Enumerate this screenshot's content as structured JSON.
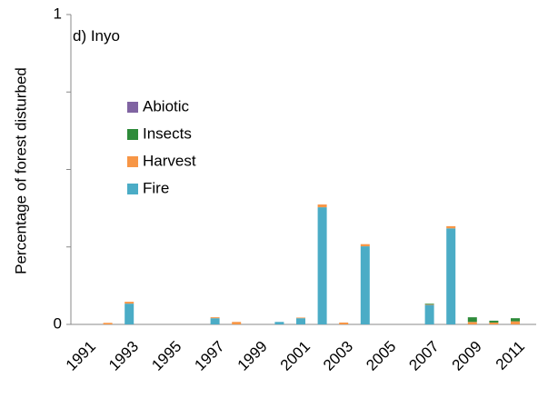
{
  "chart_data": {
    "type": "bar",
    "stacked": true,
    "annotation": "d) Inyo",
    "y_label": "Percentage of forest disturbed",
    "categories": [
      "1991",
      null,
      "1993",
      null,
      "1995",
      null,
      "1997",
      null,
      "1999",
      null,
      "2001",
      null,
      "2003",
      null,
      "2005",
      null,
      "2007",
      null,
      "2009",
      null,
      "2011"
    ],
    "series": [
      {
        "name": "Fire",
        "color": "#4bacc6",
        "values": [
          0,
          0,
          0.067,
          0,
          0,
          0,
          0.02,
          0,
          0,
          0.008,
          0.02,
          0.378,
          0,
          0.252,
          0,
          0,
          0.063,
          0.31,
          0,
          0,
          0
        ]
      },
      {
        "name": "Harvest",
        "color": "#f79646",
        "values": [
          0,
          0.005,
          0.006,
          0,
          0,
          0,
          0.003,
          0.008,
          0,
          0,
          0.002,
          0.009,
          0.006,
          0.007,
          0,
          0,
          0.002,
          0.007,
          0.008,
          0.006,
          0.01
        ]
      },
      {
        "name": "Insects",
        "color": "#2e8b3a",
        "values": [
          0,
          0,
          0,
          0,
          0,
          0,
          0,
          0,
          0,
          0,
          0,
          0,
          0,
          0,
          0,
          0,
          0.002,
          0,
          0.015,
          0.006,
          0.01
        ]
      },
      {
        "name": "Abiotic",
        "color": "#8064a2",
        "values": [
          0,
          0,
          0,
          0,
          0,
          0,
          0,
          0,
          0,
          0,
          0,
          0,
          0,
          0,
          0,
          0,
          0,
          0,
          0,
          0,
          0
        ]
      }
    ],
    "ylim": [
      0,
      1
    ],
    "yticks": [
      0,
      1
    ],
    "minor_yticks": [
      0.25,
      0.5,
      0.75
    ],
    "grid": false,
    "legend": "upper left"
  }
}
